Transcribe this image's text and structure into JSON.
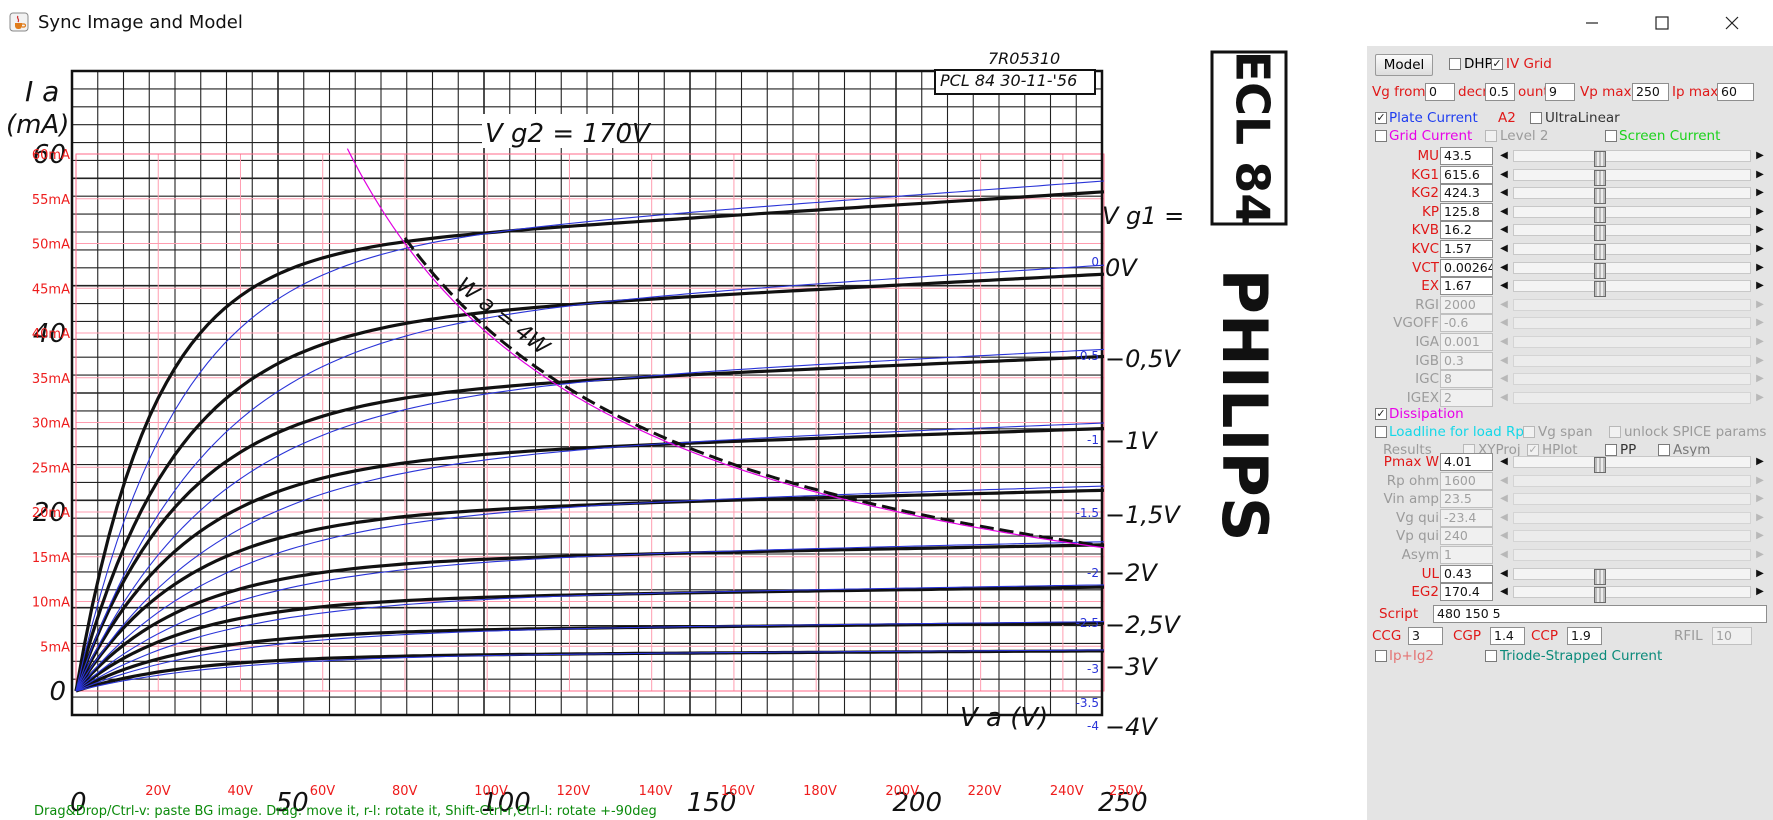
{
  "window": {
    "title": "Sync Image and Model"
  },
  "image": {
    "series_note": "7R05310",
    "tube_date": "PCL 84 30-11-'56",
    "vg2_label": "V g2 = 170V",
    "y_axis_title": "I a",
    "y_axis_unit": "(mA)",
    "x_axis_title": "V a (V)",
    "vg1_title": "V g1 =",
    "dissipation_label": "W a = 4W",
    "tube_name": "ECL 84",
    "brand": "PHILIPS",
    "bottom_ticks": [
      "0",
      "50",
      "100",
      "150",
      "200",
      "250"
    ],
    "left_ticks": [
      "0",
      "20",
      "40",
      "60"
    ],
    "curve_labels": [
      "0V",
      "−0,5V",
      "−1V",
      "−1,5V",
      "−2V",
      "−2,5V",
      "−3V",
      "−4V"
    ]
  },
  "overlay": {
    "y_labels": [
      "5mA",
      "10mA",
      "15mA",
      "20mA",
      "25mA",
      "30mA",
      "35mA",
      "40mA",
      "45mA",
      "50mA",
      "55mA",
      "60mA"
    ],
    "x_labels": [
      "20V",
      "40V",
      "60V",
      "80V",
      "100V",
      "120V",
      "140V",
      "160V",
      "180V",
      "200V",
      "220V",
      "240V",
      "250V"
    ],
    "curve_tags": [
      "0",
      "-0.5",
      "-1",
      "-1.5",
      "-2",
      "-2.5",
      "-3",
      "-3.5",
      "-4"
    ],
    "status_message": "Drag&Drop/Ctrl-v: paste BG image. Drag: move it, r-l: rotate it, Shift-Ctrl-r,Ctrl-l: rotate +-90deg"
  },
  "panel": {
    "model_button": "Model",
    "dhp_label": "DHP",
    "iv_grid_label": "IV Grid",
    "vg_from_label": "Vg from",
    "vg_from": "0",
    "decr_label": "decr",
    "decr": "0.5",
    "count_label": "ount",
    "count": "9",
    "vp_max_label": "Vp max",
    "vp_max": "250",
    "ip_max_label": "Ip max",
    "ip_max": "60",
    "plate_current": "Plate Current",
    "a2_label": "A2",
    "ultralinear": "UltraLinear",
    "grid_current": "Grid Current",
    "level2": "Level 2",
    "screen_current": "Screen Current",
    "params": [
      {
        "name": "MU",
        "value": "43.5",
        "enabled": true
      },
      {
        "name": "KG1",
        "value": "615.6",
        "enabled": true
      },
      {
        "name": "KG2",
        "value": "424.3",
        "enabled": true
      },
      {
        "name": "KP",
        "value": "125.8",
        "enabled": true
      },
      {
        "name": "KVB",
        "value": "16.2",
        "enabled": true
      },
      {
        "name": "KVC",
        "value": "1.57",
        "enabled": true
      },
      {
        "name": "VCT",
        "value": "0.00264",
        "enabled": true
      },
      {
        "name": "EX",
        "value": "1.67",
        "enabled": true
      },
      {
        "name": "RGI",
        "value": "2000",
        "enabled": false
      },
      {
        "name": "VGOFF",
        "value": "-0.6",
        "enabled": false
      },
      {
        "name": "IGA",
        "value": "0.001",
        "enabled": false
      },
      {
        "name": "IGB",
        "value": "0.3",
        "enabled": false
      },
      {
        "name": "IGC",
        "value": "8",
        "enabled": false
      },
      {
        "name": "IGEX",
        "value": "2",
        "enabled": false
      }
    ],
    "dissipation": "Dissipation",
    "loadline": "Loadline for load Rp",
    "vg_span": "Vg span",
    "unlock_spice": "unlock SPICE params",
    "results": "Results",
    "xyproj": "XYProj",
    "hplot": "HPlot",
    "pp": "PP",
    "asym": "Asym",
    "params2": [
      {
        "name": "Pmax W",
        "value": "4.01",
        "enabled": true
      },
      {
        "name": "Rp ohm",
        "value": "1600",
        "enabled": false
      },
      {
        "name": "Vin amp",
        "value": "23.5",
        "enabled": false
      },
      {
        "name": "Vg qui",
        "value": "-23.4",
        "enabled": false
      },
      {
        "name": "Vp qui",
        "value": "240",
        "enabled": false
      },
      {
        "name": "Asym",
        "value": "1",
        "enabled": false
      },
      {
        "name": "UL",
        "value": "0.43",
        "enabled": true
      },
      {
        "name": "EG2",
        "value": "170.4",
        "enabled": true
      }
    ],
    "script_label": "Script",
    "script_value": "480 150 5",
    "ccg_label": "CCG",
    "ccg": "3",
    "cgp_label": "CGP",
    "cgp": "1.4",
    "ccp_label": "CCP",
    "ccp": "1.9",
    "rfil_label": "RFIL",
    "rfil": "10",
    "ip_ig2": "Ip+Ig2",
    "triode_strapped": "Triode-Strapped Current"
  }
}
